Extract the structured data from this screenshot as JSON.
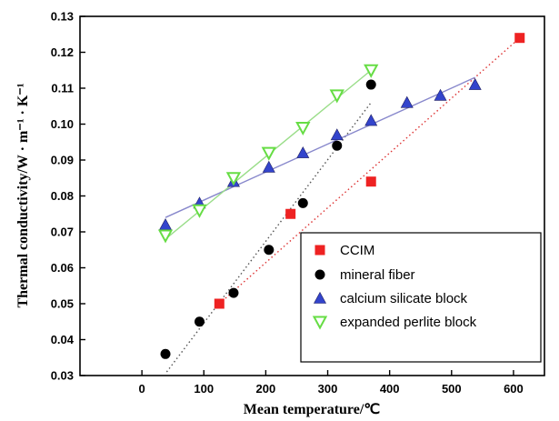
{
  "chart_data": {
    "type": "scatter",
    "xlabel": "Mean temperature/℃",
    "ylabel": "Thermal conductivity/W · m⁻¹ · K⁻¹",
    "xlim": [
      -100,
      650
    ],
    "ylim": [
      0.03,
      0.13
    ],
    "x_ticks": [
      0,
      100,
      200,
      300,
      400,
      500,
      600
    ],
    "y_ticks": [
      0.03,
      0.04,
      0.05,
      0.06,
      0.07,
      0.08,
      0.09,
      0.1,
      0.11,
      0.12,
      0.13
    ],
    "y_tick_labels": [
      "0.03",
      "0.04",
      "0.05",
      "0.06",
      "0.07",
      "0.08",
      "0.09",
      "0.10",
      "0.11",
      "0.12",
      "0.13"
    ],
    "grid": false,
    "legend_position": "bottom-right",
    "series": [
      {
        "name": "CCIM",
        "marker": "square",
        "color": "#ee2222",
        "fit_color": "#dd3333",
        "fit_style": "dotted",
        "x": [
          125,
          240,
          370,
          610
        ],
        "y": [
          0.05,
          0.075,
          0.084,
          0.124
        ],
        "fit": [
          [
            125,
            0.05
          ],
          [
            610,
            0.124
          ]
        ]
      },
      {
        "name": "mineral fiber",
        "marker": "circle",
        "color": "#000000",
        "fit_color": "#555555",
        "fit_style": "dotted",
        "x": [
          38,
          93,
          148,
          205,
          260,
          315,
          370
        ],
        "y": [
          0.036,
          0.045,
          0.053,
          0.065,
          0.078,
          0.094,
          0.111
        ],
        "fit": [
          [
            40,
            0.031
          ],
          [
            370,
            0.106
          ]
        ]
      },
      {
        "name": "calcium silicate block",
        "marker": "triangle-up",
        "color": "#3344cc",
        "fit_color": "#8888cc",
        "fit_style": "solid",
        "x": [
          38,
          93,
          148,
          205,
          260,
          315,
          370,
          428,
          482,
          538
        ],
        "y": [
          0.072,
          0.078,
          0.084,
          0.088,
          0.092,
          0.097,
          0.101,
          0.106,
          0.108,
          0.111
        ],
        "fit": [
          [
            38,
            0.074
          ],
          [
            538,
            0.113
          ]
        ]
      },
      {
        "name": "expanded perlite block",
        "marker": "triangle-down",
        "color": "#66dd44",
        "fit_color": "#99dd88",
        "fit_style": "solid",
        "x": [
          38,
          93,
          148,
          205,
          260,
          315,
          370
        ],
        "y": [
          0.069,
          0.076,
          0.085,
          0.092,
          0.099,
          0.108,
          0.115
        ],
        "fit": [
          [
            38,
            0.068
          ],
          [
            370,
            0.115
          ]
        ]
      }
    ]
  }
}
